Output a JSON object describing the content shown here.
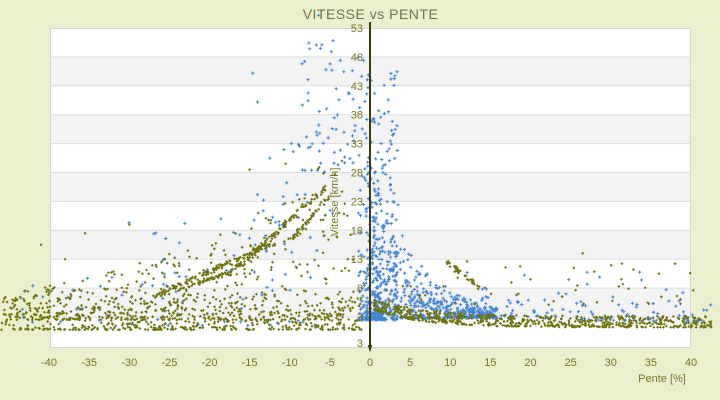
{
  "title": "VITESSE vs PENTE",
  "colors": {
    "page_background": "#ebefcd",
    "band_white": "#ffffff",
    "band_gray": "#f3f3f3",
    "grid_line": "#dddddd",
    "plot_border": "#d4d4d4",
    "axis_line": "#3c3c08",
    "tick_text": "#74771f",
    "title_text": "#6f7548",
    "series_olive": "#6f7410",
    "series_blue": "#4184d8"
  },
  "chart_data": {
    "type": "scatter",
    "title": "VITESSE vs PENTE",
    "xlabel": "Pente [%]",
    "ylabel": "Vitesse [km/h]",
    "xlim": [
      -40,
      40
    ],
    "ylim": [
      -2,
      53
    ],
    "grid": "horizontal-bands",
    "legend": "none",
    "x_ticks": [
      -40,
      -35,
      -30,
      -25,
      -20,
      -15,
      -10,
      -5,
      0,
      5,
      10,
      15,
      20,
      25,
      30,
      35,
      40
    ],
    "y_ticks": [
      53,
      48,
      43,
      38,
      33,
      28,
      23,
      18,
      13,
      8,
      3
    ],
    "y_axis_bottom_label": "3",
    "y_axis_position_x": 0,
    "series": [
      {
        "name": "serie-bleue",
        "marker": "plus",
        "color": "#4184d8",
        "seed": 20,
        "clusters": [
          {
            "kind": "band",
            "count": 270,
            "x": [
              -1.5,
              3.5
            ],
            "xbias": 1,
            "y": [
              2.5,
              46
            ],
            "ybias": 2.6
          },
          {
            "kind": "band",
            "count": 130,
            "x": [
              -0.5,
              2
            ],
            "xbias": 1,
            "y": [
              2.5,
              30
            ],
            "ybias": 2.0
          },
          {
            "kind": "band",
            "count": 45,
            "x": [
              -8.5,
              -1.5
            ],
            "xbias": 1,
            "y": [
              28,
              51
            ],
            "ybias": 1.4
          },
          {
            "kind": "band",
            "count": 40,
            "x": [
              -15,
              -4
            ],
            "xbias": 1,
            "y": [
              14,
              34
            ],
            "ybias": 1.2
          },
          {
            "kind": "triangle",
            "count": 430,
            "x": [
              0,
              16
            ],
            "peak": 1.5,
            "vmax": 26,
            "falloff": 5.5,
            "ybase": 2.8,
            "ybias": 1.9
          },
          {
            "kind": "decay",
            "count": 150,
            "x": [
              3,
              42.5
            ],
            "xbias": 1.1,
            "base": 2.2,
            "amp": 4.5,
            "tau": 9,
            "spread": 3.2,
            "sbias": 2.2
          },
          {
            "kind": "band",
            "count": 22,
            "x": [
              12,
              40
            ],
            "xbias": 1,
            "y": [
              5.5,
              11
            ],
            "ybias": 1.2
          },
          {
            "kind": "band",
            "count": 50,
            "x": [
              -45,
              -6
            ],
            "xbias": 1,
            "y": [
              1.5,
              11
            ],
            "ybias": 1.6
          },
          {
            "kind": "band",
            "count": 28,
            "x": [
              -32,
              -9
            ],
            "xbias": 1,
            "y": [
              8,
              20
            ],
            "ybias": 1.3
          }
        ],
        "points": [
          [
            -6.4,
            55.2
          ],
          [
            -7.6,
            50.4
          ],
          [
            -6,
            50.1
          ],
          [
            -4.6,
            50.8
          ],
          [
            -7.5,
            49.4
          ],
          [
            -14.6,
            45.2
          ],
          [
            -5.5,
            45.8
          ],
          [
            -2.2,
            45.6
          ],
          [
            -3.7,
            47.4
          ],
          [
            -0.8,
            47.4
          ],
          [
            0,
            44.6
          ],
          [
            -14,
            40.2
          ],
          [
            -0.4,
            41.6
          ],
          [
            -2.1,
            40.7
          ],
          [
            -5.4,
            39
          ],
          [
            2.3,
            38.5
          ],
          [
            -4.7,
            35.6
          ],
          [
            -1.9,
            35.2
          ],
          [
            -0.6,
            34.7
          ],
          [
            1,
            31.5
          ],
          [
            -9.8,
            33
          ],
          [
            -12.5,
            30.5
          ],
          [
            -35.9,
            4.5
          ]
        ]
      },
      {
        "name": "serie-olive",
        "marker": "diamond",
        "color": "#6f7410",
        "seed": 77,
        "clusters": [
          {
            "kind": "band",
            "count": 500,
            "x": [
              -46,
              -1
            ],
            "xbias": 1,
            "y": [
              0.8,
              6.5
            ],
            "ybias": 2.2
          },
          {
            "kind": "triangle",
            "count": 520,
            "x": [
              -45,
              -2
            ],
            "peak": -6,
            "vmax": 30,
            "falloff": 22,
            "ybase": 2.5,
            "ybias": 2.1
          },
          {
            "kind": "streak",
            "count": 130,
            "from": [
              -27,
              6.5
            ],
            "to": [
              -12,
              16
            ],
            "jitter": 0.45
          },
          {
            "kind": "streak",
            "count": 110,
            "from": [
              -16.5,
              11.5
            ],
            "to": [
              -5.5,
              25.5
            ],
            "jitter": 0.4
          },
          {
            "kind": "streak",
            "count": 60,
            "from": [
              -24,
              7.5
            ],
            "to": [
              -17,
              11
            ],
            "jitter": 0.35
          },
          {
            "kind": "streak",
            "count": 45,
            "from": [
              -10,
              16
            ],
            "to": [
              -5,
              24
            ],
            "jitter": 0.35
          },
          {
            "kind": "decay",
            "count": 650,
            "x": [
              0.5,
              42.8
            ],
            "xbias": 1.25,
            "base": 1.2,
            "amp": 3.0,
            "tau": 6,
            "spread": 2.0,
            "sbias": 1.5
          },
          {
            "kind": "band",
            "count": 45,
            "x": [
              1,
              41
            ],
            "xbias": 1,
            "y": [
              5,
              13
            ],
            "ybias": 1.6
          },
          {
            "kind": "streak",
            "count": 35,
            "from": [
              9,
              13
            ],
            "to": [
              14,
              8
            ],
            "jitter": 0.4
          }
        ],
        "points": [
          [
            26.5,
            14
          ],
          [
            38,
            12.2
          ],
          [
            36,
            10.5
          ],
          [
            20,
            9.5
          ],
          [
            31.5,
            8.7
          ],
          [
            -41,
            15.5
          ],
          [
            -38,
            13
          ],
          [
            -35.5,
            17.5
          ],
          [
            -30,
            19
          ],
          [
            -15,
            28.5
          ],
          [
            -10.5,
            29.5
          ],
          [
            -3.5,
            30
          ],
          [
            42.5,
            2.2
          ],
          [
            41.8,
            3.1
          ]
        ]
      }
    ]
  }
}
